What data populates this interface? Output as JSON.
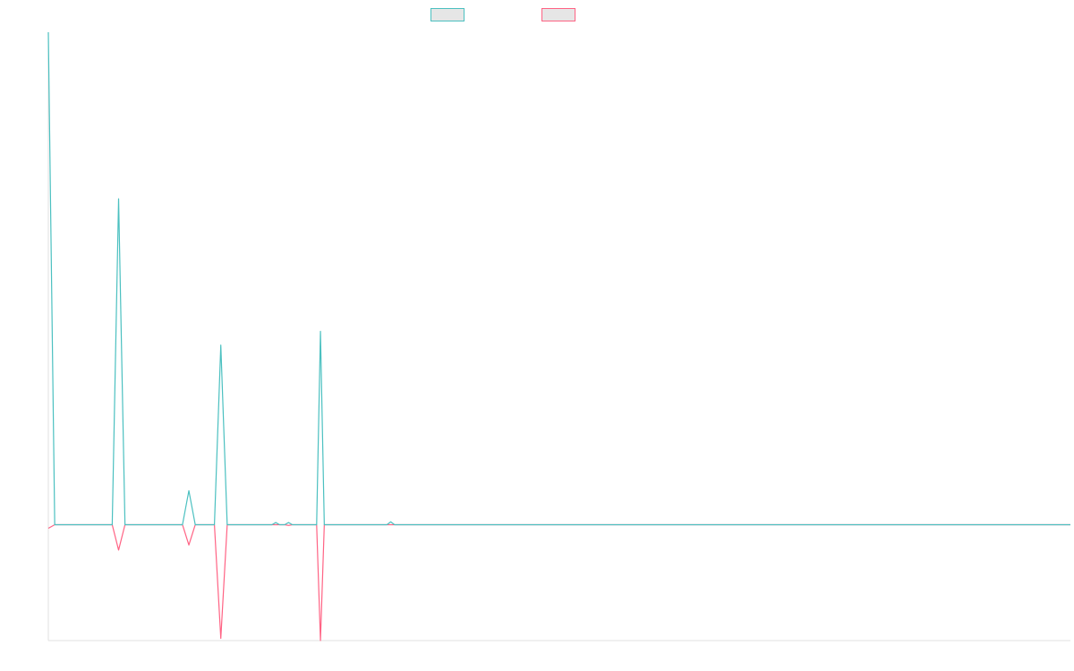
{
  "chart_data": {
    "type": "line",
    "title": "",
    "xlabel": "",
    "ylabel": "",
    "x_count": 160,
    "ylim": [
      -160,
      680
    ],
    "grid": false,
    "legend_position": "top-center",
    "series": [
      {
        "color": "#4bc0c0",
        "points": [
          [
            0,
            680
          ],
          [
            1,
            0
          ],
          [
            10,
            0
          ],
          [
            11,
            450
          ],
          [
            12,
            0
          ],
          [
            21,
            0
          ],
          [
            22,
            47
          ],
          [
            23,
            0
          ],
          [
            26,
            0
          ],
          [
            27,
            248
          ],
          [
            28,
            0
          ],
          [
            35,
            0
          ],
          [
            35.6,
            3
          ],
          [
            36.2,
            0
          ],
          [
            37,
            0
          ],
          [
            37.6,
            3
          ],
          [
            38.2,
            0
          ],
          [
            42,
            0
          ],
          [
            42.6,
            267
          ],
          [
            43.2,
            0
          ],
          [
            53,
            0
          ],
          [
            53.6,
            4
          ],
          [
            54.2,
            0
          ],
          [
            160,
            0
          ]
        ]
      },
      {
        "color": "#ff6384",
        "points": [
          [
            0,
            -5
          ],
          [
            1,
            0
          ],
          [
            10,
            0
          ],
          [
            11,
            -35
          ],
          [
            12,
            0
          ],
          [
            21,
            0
          ],
          [
            22,
            -28
          ],
          [
            23,
            0
          ],
          [
            26,
            0
          ],
          [
            27,
            -157
          ],
          [
            28,
            0
          ],
          [
            37,
            0
          ],
          [
            37.6,
            -1
          ],
          [
            38.2,
            0
          ],
          [
            42,
            0
          ],
          [
            42.6,
            -160
          ],
          [
            43.2,
            0
          ],
          [
            160,
            0
          ]
        ]
      }
    ]
  }
}
